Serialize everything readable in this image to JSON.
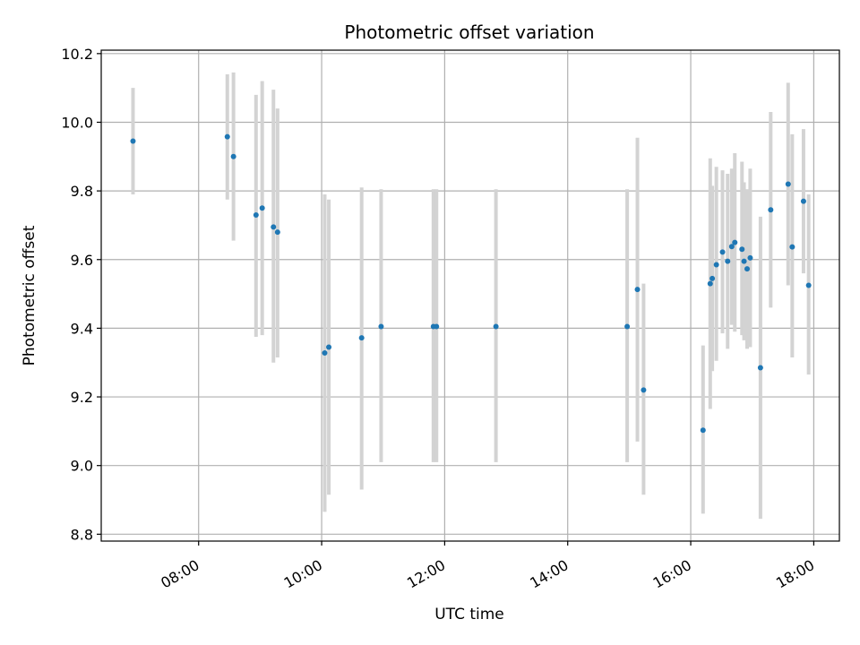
{
  "chart_data": {
    "type": "scatter",
    "title": "Photometric offset variation",
    "xlabel": "UTC time",
    "ylabel": "Photometric offset",
    "xlim": [
      "06:25",
      "18:25"
    ],
    "ylim": [
      8.78,
      10.21
    ],
    "x_ticks": [
      "08:00",
      "10:00",
      "12:00",
      "14:00",
      "16:00",
      "18:00"
    ],
    "y_ticks": [
      "8.8",
      "9.0",
      "9.2",
      "9.4",
      "9.6",
      "9.8",
      "10.0",
      "10.2"
    ],
    "grid": true,
    "colors": {
      "point": "#1f77b4",
      "errorbar": "#d3d3d3",
      "grid": "#b0b0b0"
    },
    "points": [
      {
        "x": "06:56",
        "y": 9.945,
        "lo": 9.79,
        "hi": 10.1
      },
      {
        "x": "08:28",
        "y": 9.958,
        "lo": 9.775,
        "hi": 10.14
      },
      {
        "x": "08:34",
        "y": 9.9,
        "lo": 9.655,
        "hi": 10.145
      },
      {
        "x": "08:56",
        "y": 9.73,
        "lo": 9.375,
        "hi": 10.08
      },
      {
        "x": "09:02",
        "y": 9.75,
        "lo": 9.38,
        "hi": 10.12
      },
      {
        "x": "09:13",
        "y": 9.695,
        "lo": 9.3,
        "hi": 10.095
      },
      {
        "x": "09:17",
        "y": 9.68,
        "lo": 9.315,
        "hi": 10.04
      },
      {
        "x": "10:03",
        "y": 9.328,
        "lo": 8.865,
        "hi": 9.79
      },
      {
        "x": "10:07",
        "y": 9.345,
        "lo": 8.915,
        "hi": 9.775
      },
      {
        "x": "10:39",
        "y": 9.372,
        "lo": 8.93,
        "hi": 9.81
      },
      {
        "x": "10:58",
        "y": 9.405,
        "lo": 9.01,
        "hi": 9.805
      },
      {
        "x": "11:49",
        "y": 9.405,
        "lo": 9.01,
        "hi": 9.805
      },
      {
        "x": "11:52",
        "y": 9.405,
        "lo": 9.01,
        "hi": 9.805
      },
      {
        "x": "12:50",
        "y": 9.405,
        "lo": 9.01,
        "hi": 9.805
      },
      {
        "x": "14:58",
        "y": 9.405,
        "lo": 9.01,
        "hi": 9.805
      },
      {
        "x": "15:08",
        "y": 9.513,
        "lo": 9.07,
        "hi": 9.955
      },
      {
        "x": "15:14",
        "y": 9.22,
        "lo": 8.915,
        "hi": 9.53
      },
      {
        "x": "16:12",
        "y": 9.103,
        "lo": 8.86,
        "hi": 9.35
      },
      {
        "x": "16:19",
        "y": 9.53,
        "lo": 9.165,
        "hi": 9.895
      },
      {
        "x": "16:21",
        "y": 9.545,
        "lo": 9.275,
        "hi": 9.815
      },
      {
        "x": "16:25",
        "y": 9.585,
        "lo": 9.305,
        "hi": 9.87
      },
      {
        "x": "16:31",
        "y": 9.622,
        "lo": 9.385,
        "hi": 9.86
      },
      {
        "x": "16:36",
        "y": 9.595,
        "lo": 9.34,
        "hi": 9.85
      },
      {
        "x": "16:40",
        "y": 9.638,
        "lo": 9.41,
        "hi": 9.865
      },
      {
        "x": "16:43",
        "y": 9.65,
        "lo": 9.39,
        "hi": 9.91
      },
      {
        "x": "16:50",
        "y": 9.63,
        "lo": 9.38,
        "hi": 9.885
      },
      {
        "x": "16:52",
        "y": 9.595,
        "lo": 9.365,
        "hi": 9.825
      },
      {
        "x": "16:55",
        "y": 9.573,
        "lo": 9.34,
        "hi": 9.805
      },
      {
        "x": "16:58",
        "y": 9.605,
        "lo": 9.345,
        "hi": 9.865
      },
      {
        "x": "17:08",
        "y": 9.285,
        "lo": 8.845,
        "hi": 9.725
      },
      {
        "x": "17:18",
        "y": 9.745,
        "lo": 9.46,
        "hi": 10.03
      },
      {
        "x": "17:35",
        "y": 9.82,
        "lo": 9.525,
        "hi": 10.115
      },
      {
        "x": "17:39",
        "y": 9.637,
        "lo": 9.315,
        "hi": 9.965
      },
      {
        "x": "17:50",
        "y": 9.77,
        "lo": 9.56,
        "hi": 9.98
      },
      {
        "x": "17:55",
        "y": 9.525,
        "lo": 9.265,
        "hi": 9.79
      }
    ]
  }
}
